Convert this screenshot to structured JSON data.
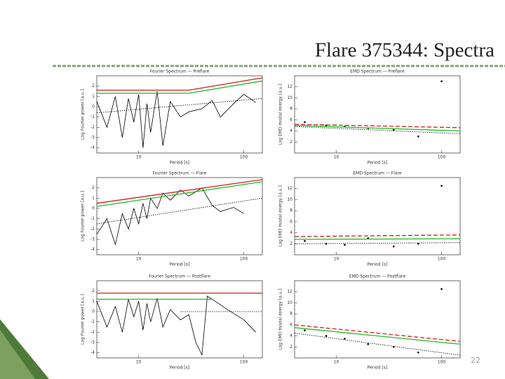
{
  "slide": {
    "title": "Flare 375344: Spectra",
    "page_number": "22"
  },
  "panels": [
    {
      "type": "fourier",
      "title": "Fourier Spectrum — Preflare",
      "x_label": "Period [s]",
      "y_label": "Log Fourier power [a.u.]",
      "xlog": true,
      "xlim": [
        4,
        150
      ],
      "xticks": [
        10,
        100
      ],
      "ylim": [
        -4.5,
        3
      ],
      "yticks": [
        -4,
        -3,
        -2,
        -1,
        0,
        1,
        2
      ],
      "series": [
        {
          "color": "#000000",
          "style": "solid",
          "x": [
            4,
            5,
            6,
            7,
            8,
            9,
            10,
            11,
            12,
            13,
            15,
            17,
            20,
            25,
            30,
            40,
            50,
            60,
            80,
            100,
            130
          ],
          "y": [
            0.5,
            -2,
            1,
            -3,
            0.8,
            -1.5,
            1.2,
            -4,
            0.3,
            -2.5,
            1.5,
            -3.8,
            0.5,
            -1,
            -0.5,
            -0.2,
            0.6,
            -1,
            0.3,
            1.2,
            0.4
          ]
        },
        {
          "color": "#cc2222",
          "style": "solid",
          "x": [
            4,
            30,
            150
          ],
          "y": [
            1.6,
            1.6,
            2.8
          ]
        },
        {
          "color": "#22bb22",
          "style": "solid",
          "x": [
            4,
            30,
            150
          ],
          "y": [
            1.3,
            1.3,
            2.5
          ]
        },
        {
          "color": "#000000",
          "style": "dotted",
          "x": [
            4,
            150
          ],
          "y": [
            -0.6,
            0.8
          ]
        }
      ]
    },
    {
      "type": "emd",
      "title": "EMD Spectrum — Preflare",
      "x_label": "Period [s]",
      "y_label": "Log EMD modal energy [a.u.]",
      "xlog": true,
      "xlim": [
        4,
        150
      ],
      "xticks": [
        10,
        100
      ],
      "ylim": [
        0,
        14
      ],
      "yticks": [
        2,
        4,
        6,
        8,
        10,
        12
      ],
      "series": [
        {
          "color": "#000000",
          "style": "points",
          "x": [
            5,
            8,
            12,
            20,
            35,
            60,
            100
          ],
          "y": [
            5.6,
            5.0,
            4.8,
            4.5,
            4.2,
            3.0,
            13
          ]
        },
        {
          "color": "#cc2222",
          "style": "dashed",
          "x": [
            4,
            150
          ],
          "y": [
            5.2,
            4.6
          ]
        },
        {
          "color": "#22bb22",
          "style": "solid",
          "x": [
            4,
            150
          ],
          "y": [
            5.0,
            4.0
          ]
        },
        {
          "color": "#000000",
          "style": "dotted",
          "x": [
            4,
            150
          ],
          "y": [
            4.8,
            3.5
          ]
        }
      ]
    },
    {
      "type": "fourier",
      "title": "Fourier Spectrum — Flare",
      "x_label": "Period [s]",
      "y_label": "Log Fourier power [a.u.]",
      "xlog": true,
      "xlim": [
        4,
        150
      ],
      "xticks": [
        10,
        100
      ],
      "ylim": [
        -4.5,
        3
      ],
      "yticks": [
        -4,
        -3,
        -2,
        -1,
        0,
        1,
        2
      ],
      "series": [
        {
          "color": "#000000",
          "style": "solid",
          "x": [
            4,
            5,
            6,
            7,
            8,
            9,
            10,
            11,
            12,
            13,
            15,
            17,
            20,
            25,
            30,
            40,
            50,
            60,
            80,
            100
          ],
          "y": [
            -2.5,
            -1,
            -3.5,
            -0.5,
            -2,
            0,
            -1.5,
            0.5,
            -1,
            1,
            0,
            1.5,
            0.8,
            1.8,
            1.2,
            2,
            0.3,
            -0.3,
            0.1,
            -0.5
          ]
        },
        {
          "color": "#cc2222",
          "style": "solid",
          "x": [
            4,
            150
          ],
          "y": [
            0.5,
            2.8
          ]
        },
        {
          "color": "#22bb22",
          "style": "solid",
          "x": [
            4,
            150
          ],
          "y": [
            0.2,
            2.6
          ]
        },
        {
          "color": "#000000",
          "style": "dotted",
          "x": [
            4,
            150
          ],
          "y": [
            -1.5,
            1
          ]
        }
      ]
    },
    {
      "type": "emd",
      "title": "EMD Spectrum — Flare",
      "x_label": "Period [s]",
      "y_label": "Log EMD modal energy [a.u.]",
      "xlog": true,
      "xlim": [
        4,
        150
      ],
      "xticks": [
        10,
        100
      ],
      "ylim": [
        0,
        14
      ],
      "yticks": [
        2,
        4,
        6,
        8,
        10,
        12
      ],
      "series": [
        {
          "color": "#000000",
          "style": "points",
          "x": [
            5,
            8,
            12,
            20,
            35,
            60,
            100
          ],
          "y": [
            2.5,
            2.0,
            1.8,
            3.0,
            1.5,
            2.0,
            12.5
          ]
        },
        {
          "color": "#cc2222",
          "style": "dashed",
          "x": [
            4,
            150
          ],
          "y": [
            3.3,
            3.6
          ]
        },
        {
          "color": "#22bb22",
          "style": "solid",
          "x": [
            4,
            150
          ],
          "y": [
            2.8,
            2.9
          ]
        },
        {
          "color": "#000000",
          "style": "dotted",
          "x": [
            4,
            150
          ],
          "y": [
            2.0,
            2.2
          ]
        }
      ]
    },
    {
      "type": "fourier",
      "title": "Fourier Spectrum — Postflare",
      "x_label": "Period [s]",
      "y_label": "Log Fourier power [a.u.]",
      "xlog": true,
      "xlim": [
        4,
        150
      ],
      "xticks": [
        10,
        100
      ],
      "ylim": [
        -4.5,
        3
      ],
      "yticks": [
        -4,
        -3,
        -2,
        -1,
        0,
        1,
        2
      ],
      "series": [
        {
          "color": "#000000",
          "style": "solid",
          "x": [
            4,
            5,
            6,
            7,
            8,
            9,
            10,
            11,
            12,
            13,
            15,
            17,
            20,
            25,
            30,
            35,
            40,
            45,
            50,
            70,
            100,
            130
          ],
          "y": [
            1,
            -1.5,
            0.5,
            -2,
            1.2,
            -0.5,
            1,
            -1.8,
            0.8,
            -1,
            1.3,
            -1.5,
            0.2,
            -0.8,
            -0.3,
            -3,
            -4.2,
            1.5,
            1.2,
            0.2,
            -0.8,
            -2
          ]
        },
        {
          "color": "#cc2222",
          "style": "solid",
          "x": [
            4,
            150
          ],
          "y": [
            1.8,
            1.8
          ]
        },
        {
          "color": "#22bb22",
          "style": "solid",
          "x": [
            4,
            50
          ],
          "y": [
            1.2,
            1.2
          ]
        },
        {
          "color": "#000000",
          "style": "dotted",
          "x": [
            25,
            150
          ],
          "y": [
            0,
            0
          ]
        }
      ]
    },
    {
      "type": "emd",
      "title": "EMD Spectrum — Postflare",
      "x_label": "Period [s]",
      "y_label": "Log EMD modal energy [a.u.]",
      "xlog": true,
      "xlim": [
        4,
        150
      ],
      "xticks": [
        10,
        100
      ],
      "ylim": [
        0,
        14
      ],
      "yticks": [
        2,
        4,
        6,
        8,
        10,
        12
      ],
      "series": [
        {
          "color": "#000000",
          "style": "points",
          "x": [
            5,
            8,
            12,
            20,
            35,
            60,
            100
          ],
          "y": [
            5,
            4,
            3.5,
            2.5,
            2,
            1,
            12.5
          ]
        },
        {
          "color": "#cc2222",
          "style": "dashed",
          "x": [
            4,
            150
          ],
          "y": [
            6,
            3
          ]
        },
        {
          "color": "#22bb22",
          "style": "solid",
          "x": [
            4,
            150
          ],
          "y": [
            5.5,
            2.5
          ]
        },
        {
          "color": "#000000",
          "style": "dotted",
          "x": [
            4,
            150
          ],
          "y": [
            4.5,
            0.5
          ]
        }
      ]
    }
  ]
}
